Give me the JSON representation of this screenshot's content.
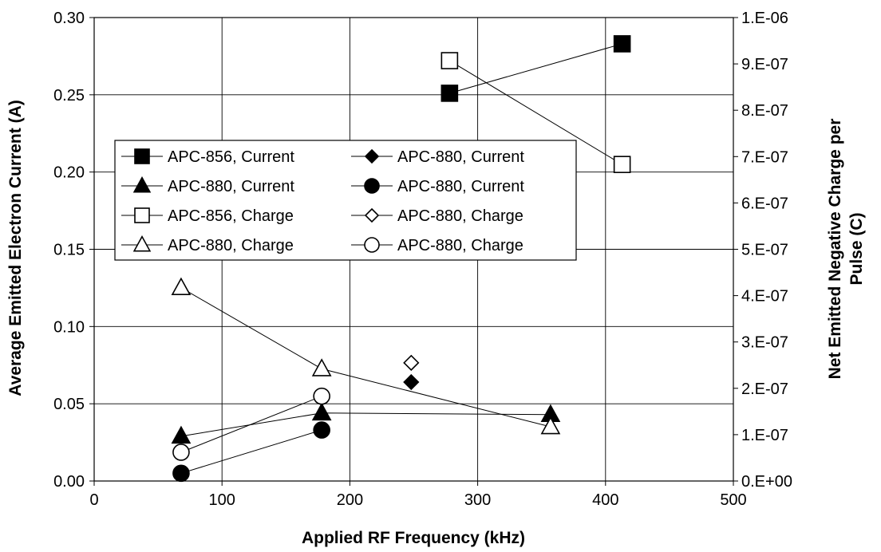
{
  "chart_data": {
    "type": "scatter",
    "xlabel": "Applied RF Frequency (kHz)",
    "ylabel": "Average Emitted Electron Current (A)",
    "y2label_lines": [
      "Net Emitted Negative Charge per",
      "Pulse (C)"
    ],
    "xlim": [
      0,
      500
    ],
    "ylim": [
      0,
      0.3
    ],
    "y2lim": [
      0,
      1e-06
    ],
    "x_ticks": [
      "0",
      "100",
      "200",
      "300",
      "400",
      "500"
    ],
    "y_ticks": [
      "0.00",
      "0.05",
      "0.10",
      "0.15",
      "0.20",
      "0.25",
      "0.30"
    ],
    "y2_ticks": [
      "0.E+00",
      "1.E-07",
      "2.E-07",
      "3.E-07",
      "4.E-07",
      "5.E-07",
      "6.E-07",
      "7.E-07",
      "8.E-07",
      "9.E-07",
      "1.E-06"
    ],
    "grid": true,
    "legend_placement": "center-left",
    "series": [
      {
        "name": "APC-856, Current",
        "axis": "left",
        "marker": "square",
        "filled": true,
        "line": true,
        "x": [
          278,
          413
        ],
        "y": [
          0.251,
          0.283
        ]
      },
      {
        "name": "APC-880, Current",
        "axis": "left",
        "marker": "diamond",
        "filled": true,
        "line": true,
        "x": [
          248
        ],
        "y": [
          0.064
        ]
      },
      {
        "name": "APC-880, Current",
        "axis": "left",
        "marker": "triangle",
        "filled": true,
        "line": true,
        "x": [
          68,
          178,
          357
        ],
        "y": [
          0.029,
          0.044,
          0.043
        ]
      },
      {
        "name": "APC-880, Current",
        "axis": "left",
        "marker": "circle",
        "filled": true,
        "line": true,
        "x": [
          68,
          178
        ],
        "y": [
          0.005,
          0.033
        ]
      },
      {
        "name": "APC-856, Charge",
        "axis": "right",
        "marker": "square",
        "filled": false,
        "line": true,
        "x": [
          278,
          413
        ],
        "y": [
          9.07e-07,
          6.83e-07
        ]
      },
      {
        "name": "APC-880, Charge",
        "axis": "right",
        "marker": "diamond",
        "filled": false,
        "line": true,
        "x": [
          248
        ],
        "y": [
          2.55e-07
        ]
      },
      {
        "name": "APC-880, Charge",
        "axis": "right",
        "marker": "triangle",
        "filled": false,
        "line": true,
        "x": [
          68,
          178,
          357
        ],
        "y": [
          4.17e-07,
          2.42e-07,
          1.17e-07
        ]
      },
      {
        "name": "APC-880, Charge",
        "axis": "right",
        "marker": "circle",
        "filled": false,
        "line": true,
        "x": [
          68,
          178
        ],
        "y": [
          6.2e-08,
          1.83e-07
        ]
      }
    ],
    "legend_order": [
      0,
      1,
      2,
      3,
      4,
      5,
      6,
      7
    ]
  }
}
